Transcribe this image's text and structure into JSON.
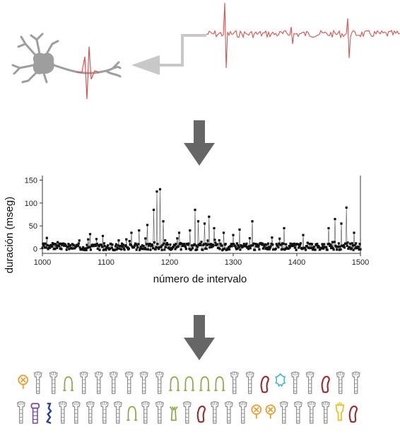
{
  "figure": {
    "top": {
      "neuron_icon": "neuron-icon",
      "arrow_icon": "left-arrow-icon",
      "spike_trace_color": "#d9534f",
      "neuron_color": "#9e9e9e"
    },
    "arrows": {
      "down_icon": "down-arrow-icon",
      "color": "#666666"
    },
    "glyphs": {
      "colors": {
        "default": "#8a8a8a",
        "orange": "#e89a2c",
        "green": "#8aa84a",
        "red": "#9c2b30",
        "cyan": "#3ab0d6",
        "purple": "#6f4a93",
        "navy": "#2d3c8f",
        "yellow": "#e6c43a"
      },
      "rows": [
        [
          "orange-x",
          "tooth",
          "tooth",
          "green-loop",
          "tooth",
          "tooth",
          "tooth",
          "tooth",
          "tooth",
          "tooth",
          "green-loop",
          "green-loop",
          "green-loop",
          "green-loop",
          "tooth",
          "tooth",
          "red-bean",
          "cyan-flower",
          "tooth",
          "tooth",
          "red-bean",
          "tooth",
          "tooth"
        ],
        [
          "tooth",
          "purple-stack",
          "navy-zig",
          "tooth",
          "tooth",
          "tooth",
          "tooth",
          "tooth",
          "green-loop",
          "tooth",
          "tooth",
          "green-cup",
          "tooth",
          "red-bean",
          "tooth",
          "tooth",
          "tooth",
          "orange-x",
          "orange-x",
          "tooth",
          "tooth",
          "tooth",
          "tooth",
          "yellow-cup",
          "red-bean"
        ]
      ]
    }
  },
  "chart_data": {
    "type": "line",
    "xlabel": "número de intervalo",
    "ylabel": "duración (mseg)",
    "xlim": [
      1000,
      1500
    ],
    "ylim": [
      -10,
      160
    ],
    "x_ticks": [
      "1000",
      "1100",
      "1200",
      "1300",
      "1400",
      "1500"
    ],
    "y_ticks": [
      "0",
      "50",
      "100",
      "150"
    ],
    "grid": false,
    "peaks": [
      {
        "x": 1075,
        "y": 32
      },
      {
        "x": 1095,
        "y": 28
      },
      {
        "x": 1140,
        "y": 35
      },
      {
        "x": 1152,
        "y": 40
      },
      {
        "x": 1165,
        "y": 52
      },
      {
        "x": 1175,
        "y": 85
      },
      {
        "x": 1180,
        "y": 125
      },
      {
        "x": 1185,
        "y": 130
      },
      {
        "x": 1190,
        "y": 60
      },
      {
        "x": 1215,
        "y": 35
      },
      {
        "x": 1232,
        "y": 40
      },
      {
        "x": 1240,
        "y": 85
      },
      {
        "x": 1245,
        "y": 60
      },
      {
        "x": 1255,
        "y": 55
      },
      {
        "x": 1262,
        "y": 70
      },
      {
        "x": 1270,
        "y": 45
      },
      {
        "x": 1285,
        "y": 35
      },
      {
        "x": 1300,
        "y": 30
      },
      {
        "x": 1310,
        "y": 42
      },
      {
        "x": 1330,
        "y": 60
      },
      {
        "x": 1380,
        "y": 45
      },
      {
        "x": 1410,
        "y": 30
      },
      {
        "x": 1450,
        "y": 45
      },
      {
        "x": 1460,
        "y": 65
      },
      {
        "x": 1470,
        "y": 55
      },
      {
        "x": 1478,
        "y": 90
      },
      {
        "x": 1490,
        "y": 35
      }
    ],
    "baseline_range": [
      0,
      15
    ]
  }
}
